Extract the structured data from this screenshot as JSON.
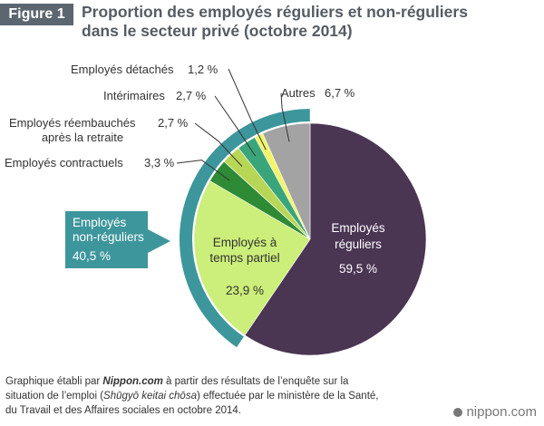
{
  "header": {
    "figure_label": "Figure 1",
    "title_line1": "Proportion des employés réguliers et non-réguliers",
    "title_line2": "dans le secteur privé (octobre 2014)"
  },
  "chart_data": {
    "type": "pie",
    "title": "Proportion des employés réguliers et non-réguliers dans le secteur privé (octobre 2014)",
    "slices": [
      {
        "label": "Employés réguliers",
        "value": 59.5,
        "value_label": "59,5 %",
        "color": "#4a3553"
      },
      {
        "label": "Employés à temps partiel",
        "value": 23.9,
        "value_label": "23,9 %",
        "color": "#ccee7a"
      },
      {
        "label": "Employés contractuels",
        "value": 3.3,
        "value_label": "3,3 %",
        "color": "#2e8a35"
      },
      {
        "label": "Employés réembauchés après la retraite",
        "value": 2.7,
        "value_label": "2,7 %",
        "color": "#b8d655"
      },
      {
        "label": "Intérimaires",
        "value": 2.7,
        "value_label": "2,7 %",
        "color": "#3aa57a"
      },
      {
        "label": "Employés détachés",
        "value": 1.2,
        "value_label": "1,2 %",
        "color": "#f2f56a"
      },
      {
        "label": "Autres",
        "value": 6.7,
        "value_label": "6,7 %",
        "color": "#a3a3a3"
      }
    ],
    "group": {
      "label_line1": "Employés",
      "label_line2": "non-réguliers",
      "value_label": "40,5 %",
      "color": "#3d969c"
    },
    "inner_labels": {
      "regular_line1": "Employés",
      "regular_line2": "réguliers",
      "parttime_line1": "Employés à",
      "parttime_line2": "temps partiel"
    },
    "outer_labels": {
      "contract": "Employés contractuels",
      "rehired_line1": "Employés réembauchés",
      "rehired_line2": "après la retraite",
      "temp": "Intérimaires",
      "detached": "Employés détachés",
      "others": "Autres"
    }
  },
  "footer": {
    "t1": "Graphique établi par ",
    "source": "Nippon.com",
    "t2": " à partir des résultats de l’enquête sur la",
    "t3": "situation de l’emploi (",
    "survey": "Shūgyō keitai chōsa",
    "t4": ") effectuée par le ministère de la Santé,",
    "t5": "du Travail et des Affaires sociales en octobre 2014."
  },
  "brand": {
    "text": "nippon.com"
  }
}
